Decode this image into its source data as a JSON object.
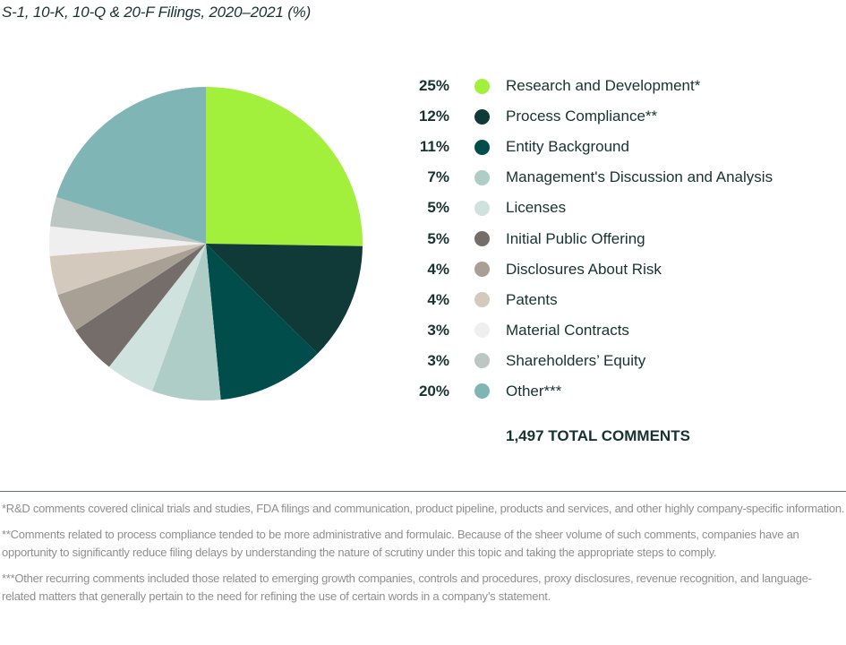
{
  "chart_data": {
    "type": "pie",
    "title": "S-1, 10-K, 10-Q & 20-F Filings, 2020–2021 (%)",
    "start": "12 o'clock",
    "direction": "clockwise",
    "legend_position": "right",
    "slices": [
      {
        "label": "Research and Development*",
        "value": 25,
        "pct_label": "25%",
        "color": "#a3f03c"
      },
      {
        "label": "Process Compliance**",
        "value": 12,
        "pct_label": "12%",
        "color": "#0f3a38"
      },
      {
        "label": "Entity Background",
        "value": 11,
        "pct_label": "11%",
        "color": "#014d4b"
      },
      {
        "label": "Management's Discussion and Analysis",
        "value": 7,
        "pct_label": "7%",
        "color": "#aecdc6"
      },
      {
        "label": "Licenses",
        "value": 5,
        "pct_label": "5%",
        "color": "#cfe2de"
      },
      {
        "label": "Initial Public Offering",
        "value": 5,
        "pct_label": "5%",
        "color": "#756d69"
      },
      {
        "label": "Disclosures About Risk",
        "value": 4,
        "pct_label": "4%",
        "color": "#a89f95"
      },
      {
        "label": "Patents",
        "value": 4,
        "pct_label": "4%",
        "color": "#d3c9bc"
      },
      {
        "label": "Material Contracts",
        "value": 3,
        "pct_label": "3%",
        "color": "#efefef"
      },
      {
        "label": "Shareholders’ Equity",
        "value": 3,
        "pct_label": "3%",
        "color": "#bcc6c3"
      },
      {
        "label": "Other***",
        "value": 20,
        "pct_label": "20%",
        "color": "#7fb5b5"
      }
    ],
    "total_label": "1,497 TOTAL COMMENTS"
  },
  "footnotes": [
    "*R&D comments covered clinical trials and studies, FDA filings and communication, product pipeline, products and services, and other highly company-specific information.",
    "**Comments related to process compliance tended to be more administrative and formulaic. Because of the sheer volume of such comments, companies have an opportunity to significantly reduce filing delays by understanding the nature of scrutiny under this topic and taking the appropriate steps to comply.",
    "***Other recurring comments included those related to emerging growth companies, controls and procedures, proxy disclosures, revenue recognition, and language-related matters that generally pertain to the need for refining the use of certain words in a company’s statement."
  ]
}
